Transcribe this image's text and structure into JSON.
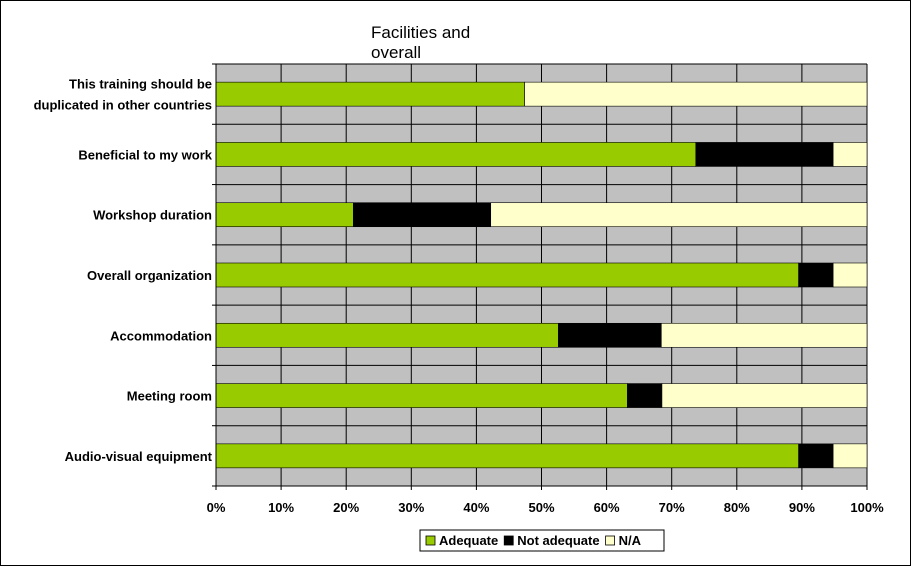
{
  "chart_data": {
    "type": "bar",
    "orientation": "horizontal",
    "stacked": "percent",
    "title": "Facilities and overall",
    "categories": [
      "This training should be duplicated in other countries",
      "Beneficial to my work",
      "Workshop duration",
      "Overall organization",
      "Accommodation",
      "Meeting room",
      "Audio-visual equipment"
    ],
    "category_lines": [
      [
        "This training should be",
        "duplicated in other countries"
      ],
      [
        "Beneficial to my work"
      ],
      [
        "Workshop duration"
      ],
      [
        "Overall organization"
      ],
      [
        "Accommodation"
      ],
      [
        "Meeting room"
      ],
      [
        "Audio-visual equipment"
      ]
    ],
    "series": [
      {
        "name": "Adequate",
        "color": "#99cc00",
        "values": [
          47.4,
          73.7,
          21.1,
          89.5,
          52.6,
          63.2,
          89.5
        ]
      },
      {
        "name": "Not adequate",
        "color": "#000000",
        "values": [
          0,
          21.1,
          21.1,
          5.3,
          15.8,
          5.3,
          5.3
        ]
      },
      {
        "name": "N/A",
        "color": "#ffffcc",
        "values": [
          52.6,
          5.2,
          57.8,
          5.2,
          31.6,
          31.5,
          5.2
        ]
      }
    ],
    "xlim": [
      0,
      100
    ],
    "x_ticks": [
      "0%",
      "10%",
      "20%",
      "30%",
      "40%",
      "50%",
      "60%",
      "70%",
      "80%",
      "90%",
      "100%"
    ],
    "grid": true,
    "plot_background": "#c0c0c0",
    "legend_position": "bottom"
  }
}
